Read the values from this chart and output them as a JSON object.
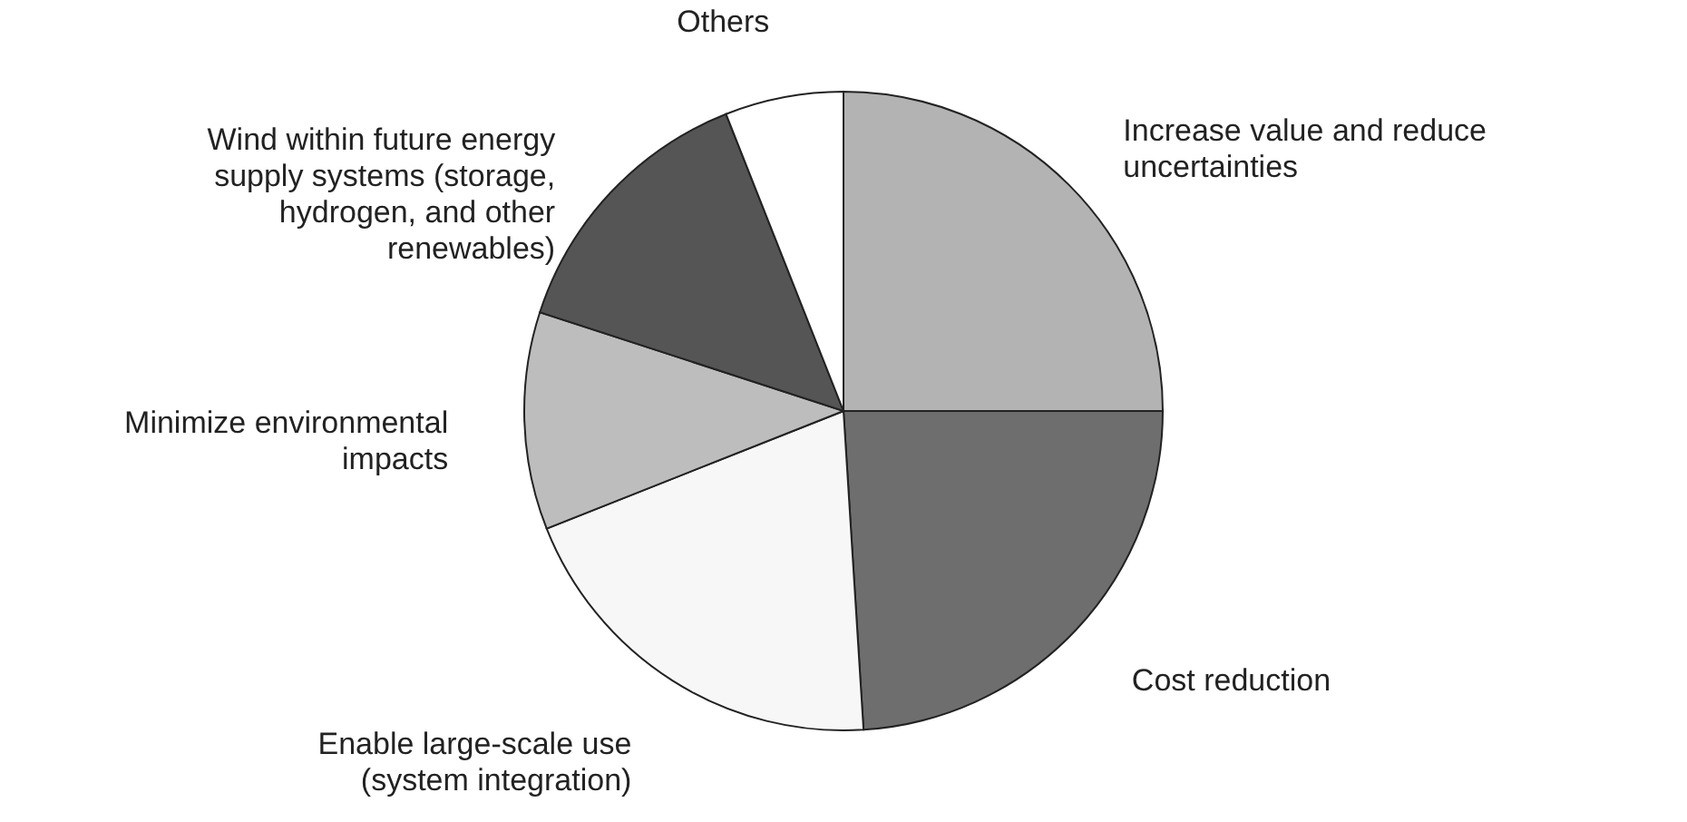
{
  "chart_data": {
    "type": "pie",
    "categories": [
      "Increase value and reduce\nuncertainties",
      "Cost reduction",
      "Enable large-scale use\n(system integration)",
      "Minimize environmental\nimpacts",
      "Wind within future energy\nsupply systems (storage,\nhydrogen, and other\nrenewables)",
      "Others"
    ],
    "values": [
      25,
      24,
      20,
      11,
      14,
      6
    ],
    "colors": [
      "#b3b3b3",
      "#6e6e6e",
      "#f7f7f7",
      "#bdbdbd",
      "#555555",
      "#ffffff"
    ]
  }
}
